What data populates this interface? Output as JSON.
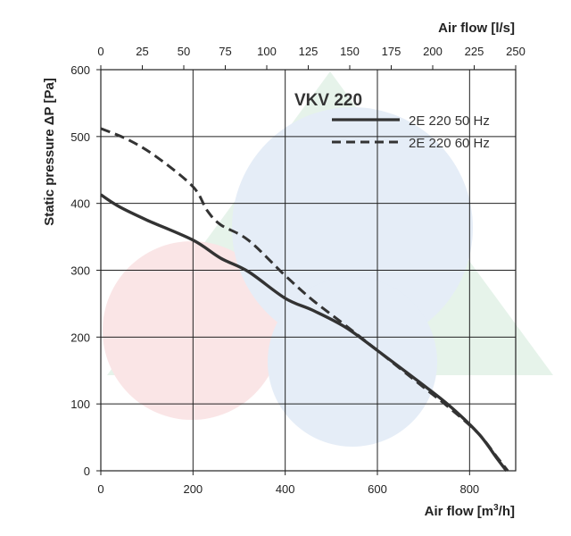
{
  "chart_data": {
    "type": "line",
    "title": "VKV 220",
    "xlabel_bottom": "Air flow [m³/h]",
    "xlabel_bottom_parts": {
      "main": "Air flow [m",
      "sup": "3",
      "end": "/h]"
    },
    "xlabel_top": "Air flow [l/s]",
    "ylabel": "Static pressure ΔP [Pa]",
    "xlim": [
      0,
      900
    ],
    "ylim": [
      0,
      600
    ],
    "x_ticks": [
      "0",
      "200",
      "400",
      "600",
      "800"
    ],
    "x_tick_values": [
      0,
      200,
      400,
      600,
      800
    ],
    "x_top_ticks": [
      "0",
      "25",
      "50",
      "75",
      "100",
      "125",
      "150",
      "175",
      "200",
      "225",
      "250"
    ],
    "x_top_tick_values": [
      0,
      25,
      50,
      75,
      100,
      125,
      150,
      175,
      200,
      225,
      250
    ],
    "y_ticks": [
      "0",
      "100",
      "200",
      "300",
      "400",
      "500",
      "600"
    ],
    "y_tick_values": [
      0,
      100,
      200,
      300,
      400,
      500,
      600
    ],
    "grid": true,
    "legend_position": "top-right",
    "series": [
      {
        "name": "2E 220 50 Hz",
        "style": "solid",
        "color": "#333333",
        "x": [
          0,
          40,
          100,
          200,
          260,
          320,
          400,
          460,
          530,
          600,
          700,
          760,
          820,
          860,
          880
        ],
        "y": [
          413,
          395,
          375,
          345,
          318,
          298,
          258,
          240,
          215,
          180,
          128,
          95,
          55,
          18,
          0
        ]
      },
      {
        "name": "2E 220 60 Hz",
        "style": "dashed",
        "color": "#333333",
        "x": [
          0,
          60,
          120,
          200,
          230,
          260,
          320,
          400,
          460,
          530,
          600,
          700,
          760,
          820,
          860,
          883
        ],
        "y": [
          512,
          495,
          470,
          425,
          390,
          368,
          345,
          292,
          255,
          218,
          180,
          125,
          92,
          55,
          20,
          0
        ]
      }
    ]
  }
}
